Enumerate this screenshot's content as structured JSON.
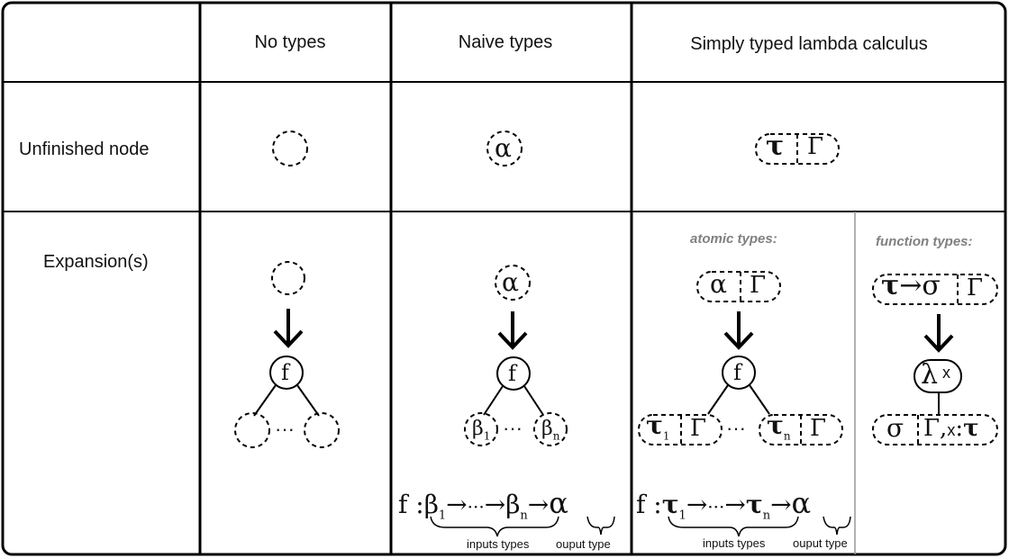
{
  "headers": {
    "col1": "No types",
    "col2": "Naive types",
    "col3": "Simply typed lambda calculus"
  },
  "rows": {
    "unfinished": "Unfinished node",
    "expansions": "Expansion(s)"
  },
  "sub_headers": {
    "atomic": "atomic types:",
    "function": "function types:"
  },
  "symbols": {
    "alpha": "α",
    "beta": "β",
    "tau": "τ",
    "sigma": "σ",
    "gamma": "Γ",
    "lambda": "λ",
    "f": "f",
    "x": "x",
    "ellipsis": "···",
    "arrow": "→",
    "colon": ":",
    "sub1": "1",
    "subn": "n",
    "gamma_x_tau_prefix": "Γ,",
    "f_colon": "f :"
  },
  "annotations": {
    "inputs_types": "inputs types",
    "output_type": "ouput type"
  }
}
